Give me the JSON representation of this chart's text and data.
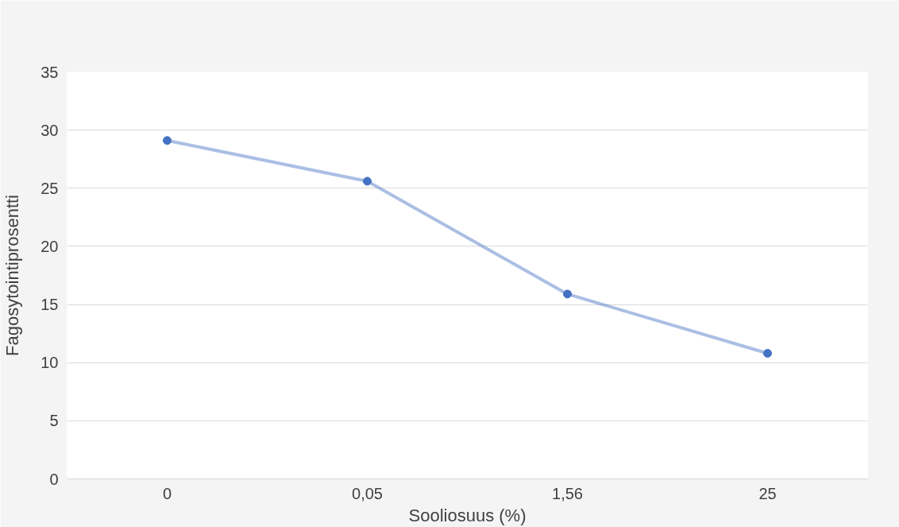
{
  "chart_data": {
    "type": "line",
    "xlabel": "Sooliosuus (%)",
    "ylabel": "Fagosytointiprosentti",
    "categories": [
      "0",
      "0,05",
      "1,56",
      "25"
    ],
    "series": [
      {
        "color": "#4472c4",
        "values": [
          29.1,
          25.6,
          15.9,
          10.8
        ]
      }
    ],
    "ylim": [
      0,
      35
    ],
    "yticks": [
      0,
      5,
      10,
      15,
      20,
      25,
      30,
      35
    ],
    "grid": "y",
    "marker": "circle",
    "line_style": "solid"
  }
}
